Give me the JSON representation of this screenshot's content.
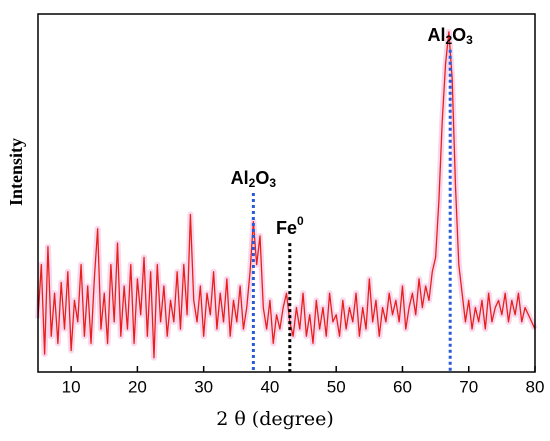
{
  "chart_data": {
    "type": "line",
    "x_label": "2 θ (degree)",
    "y_label": "Intensity",
    "xlim": [
      5,
      80
    ],
    "ylim": [
      0,
      100
    ],
    "xticks": [
      10,
      20,
      30,
      40,
      50,
      60,
      70,
      80
    ],
    "x": [
      5,
      5.5,
      6,
      6.5,
      7,
      7.5,
      8,
      8.5,
      9,
      9.5,
      10,
      10.5,
      11,
      11.5,
      12,
      12.5,
      13,
      13.5,
      14,
      14.5,
      15,
      15.5,
      16,
      16.5,
      17,
      17.5,
      18,
      18.5,
      19,
      19.5,
      20,
      20.5,
      21,
      21.5,
      22,
      22.5,
      23,
      23.5,
      24,
      24.5,
      25,
      25.5,
      26,
      26.5,
      27,
      27.5,
      28,
      28.5,
      29,
      29.5,
      30,
      30.5,
      31,
      31.5,
      32,
      32.5,
      33,
      33.5,
      34,
      34.5,
      35,
      35.5,
      36,
      36.5,
      37,
      37.5,
      38,
      38.5,
      39,
      39.5,
      40,
      40.5,
      41,
      41.5,
      42,
      42.5,
      43,
      43.5,
      44,
      44.5,
      45,
      45.5,
      46,
      46.5,
      47,
      47.5,
      48,
      48.5,
      49,
      49.5,
      50,
      50.5,
      51,
      51.5,
      52,
      52.5,
      53,
      53.5,
      54,
      54.5,
      55,
      55.5,
      56,
      56.5,
      57,
      57.5,
      58,
      58.5,
      59,
      59.5,
      60,
      60.5,
      61,
      61.5,
      62,
      62.5,
      63,
      63.5,
      64,
      64.5,
      65,
      65.5,
      66,
      66.5,
      67,
      67.5,
      68,
      68.5,
      69,
      69.5,
      70,
      70.5,
      71,
      71.5,
      72,
      72.5,
      73,
      73.5,
      74,
      74.5,
      75,
      75.5,
      76,
      76.5,
      77,
      77.5,
      78,
      78.5,
      79,
      79.5,
      80
    ],
    "series": [
      {
        "color": "#e8201c",
        "values": [
          15,
          30,
          5,
          35,
          10,
          22,
          8,
          25,
          12,
          28,
          6,
          20,
          14,
          30,
          10,
          24,
          8,
          26,
          40,
          12,
          22,
          8,
          30,
          14,
          36,
          10,
          24,
          12,
          30,
          8,
          26,
          16,
          32,
          10,
          28,
          4,
          30,
          14,
          24,
          10,
          20,
          14,
          28,
          12,
          30,
          16,
          44,
          20,
          14,
          24,
          10,
          22,
          16,
          28,
          12,
          22,
          14,
          26,
          10,
          20,
          14,
          24,
          12,
          18,
          28,
          42,
          30,
          38,
          18,
          12,
          20,
          8,
          16,
          12,
          18,
          22,
          14,
          10,
          18,
          12,
          22,
          10,
          16,
          8,
          20,
          12,
          18,
          10,
          22,
          14,
          16,
          10,
          20,
          12,
          18,
          14,
          22,
          10,
          18,
          12,
          26,
          14,
          20,
          10,
          18,
          14,
          22,
          16,
          20,
          14,
          24,
          12,
          18,
          22,
          16,
          26,
          18,
          24,
          20,
          28,
          32,
          48,
          70,
          86,
          95,
          82,
          52,
          30,
          22,
          14,
          20,
          12,
          18,
          14,
          20,
          12,
          22,
          14,
          18,
          20,
          16,
          22,
          14,
          20,
          16,
          22,
          14,
          18,
          16,
          14,
          12
        ]
      }
    ],
    "annotations": [
      {
        "x": 37.5,
        "y": 50,
        "parts": [
          "Al",
          "2",
          "O",
          "3"
        ],
        "script": "sub",
        "color": "#2a5bd7"
      },
      {
        "x": 43,
        "y": 36,
        "parts": [
          "Fe",
          "0"
        ],
        "script": "sup",
        "color": "#000000"
      },
      {
        "x": 67.2,
        "y": 90,
        "parts": [
          "Al",
          "2",
          "O",
          "3"
        ],
        "script": "sub",
        "color": "#2a5bd7"
      }
    ]
  }
}
